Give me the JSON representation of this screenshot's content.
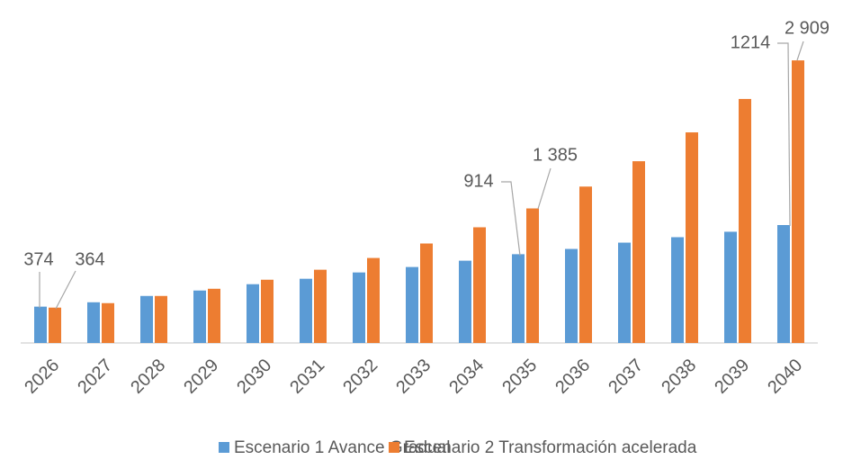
{
  "chart_data": {
    "type": "bar",
    "categories": [
      "2026",
      "2027",
      "2028",
      "2029",
      "2030",
      "2031",
      "2032",
      "2033",
      "2034",
      "2035",
      "2036",
      "2037",
      "2038",
      "2039",
      "2040"
    ],
    "series": [
      {
        "name": "Escenario 1 Avance Gradual",
        "color": "#5b9bd5",
        "values": [
          374,
          419,
          484,
          540,
          605,
          661,
          726,
          782,
          847,
          914,
          968,
          1033,
          1089,
          1145,
          1214
        ],
        "value_labels": [
          "374",
          null,
          null,
          null,
          null,
          null,
          null,
          null,
          null,
          "914",
          null,
          null,
          null,
          null,
          "1214"
        ]
      },
      {
        "name": "Escenario 2 Transformación acelerada",
        "color": "#ed7d31",
        "values": [
          364,
          410,
          484,
          558,
          651,
          754,
          875,
          1024,
          1191,
          1385,
          1610,
          1871,
          2168,
          2512,
          2909
        ],
        "value_labels": [
          "364",
          null,
          null,
          null,
          null,
          null,
          null,
          null,
          null,
          "1 385",
          null,
          null,
          null,
          null,
          "2 909"
        ]
      }
    ],
    "ylim": [
      0,
      3160
    ]
  }
}
